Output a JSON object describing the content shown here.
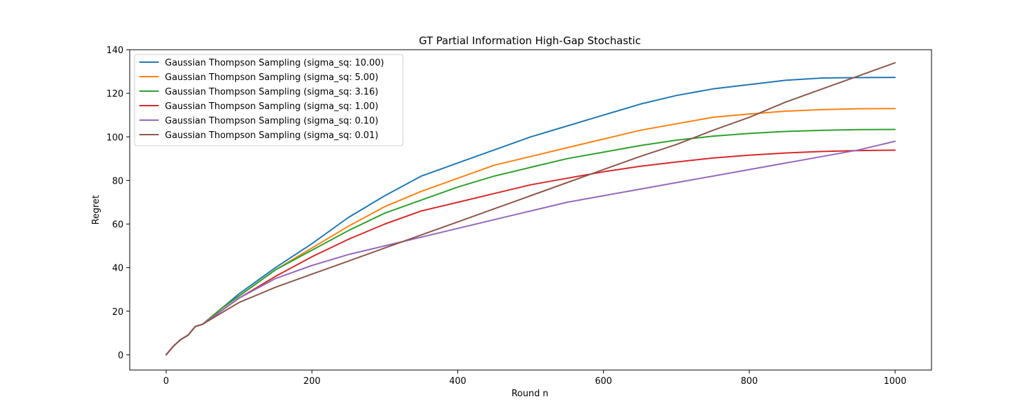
{
  "chart_data": {
    "type": "line",
    "title": "GT Partial Information High-Gap Stochastic",
    "xlabel": "Round n",
    "ylabel": "Regret",
    "xlim": [
      -50,
      1050
    ],
    "ylim": [
      -7,
      140
    ],
    "xticks": [
      0,
      200,
      400,
      600,
      800,
      1000
    ],
    "yticks": [
      0,
      20,
      40,
      60,
      80,
      100,
      120,
      140
    ],
    "grid": false,
    "legend_position": "top-left",
    "x": [
      0,
      10,
      20,
      30,
      40,
      50,
      75,
      100,
      150,
      200,
      250,
      300,
      350,
      400,
      450,
      500,
      550,
      600,
      650,
      700,
      750,
      800,
      850,
      900,
      950,
      1000
    ],
    "series": [
      {
        "name": "Gaussian Thompson Sampling (sigma_sq: 10.00)",
        "color": "#1f77b4",
        "values": [
          0,
          4,
          7,
          9,
          13,
          14,
          21,
          28,
          40,
          51,
          63,
          73,
          82,
          88,
          94,
          100,
          105,
          110,
          115,
          119,
          122,
          124,
          126,
          127,
          127.2,
          127.3
        ]
      },
      {
        "name": "Gaussian Thompson Sampling (sigma_sq: 5.00)",
        "color": "#ff7f0e",
        "values": [
          0,
          4,
          7,
          9,
          13,
          14,
          21,
          27,
          39,
          49,
          59,
          68,
          75,
          81,
          87,
          91,
          95,
          99,
          103,
          106,
          109,
          110.5,
          111.8,
          112.5,
          112.9,
          113
        ]
      },
      {
        "name": "Gaussian Thompson Sampling (sigma_sq: 3.16)",
        "color": "#2ca02c",
        "values": [
          0,
          4,
          7,
          9,
          13,
          14,
          21,
          27,
          39,
          48,
          57,
          65,
          71,
          77,
          82,
          86,
          90,
          93,
          96,
          98.5,
          100.3,
          101.6,
          102.5,
          103,
          103.3,
          103.4
        ]
      },
      {
        "name": "Gaussian Thompson Sampling (sigma_sq: 1.00)",
        "color": "#d62728",
        "values": [
          0,
          4,
          7,
          9,
          13,
          14,
          20,
          26,
          36,
          45,
          53,
          60,
          66,
          70,
          74,
          78,
          81,
          84,
          86.5,
          88.5,
          90.3,
          91.6,
          92.6,
          93.3,
          93.7,
          93.9
        ]
      },
      {
        "name": "Gaussian Thompson Sampling (sigma_sq: 0.10)",
        "color": "#9467bd",
        "values": [
          0,
          4,
          7,
          9,
          13,
          14,
          20,
          26,
          35,
          41,
          46,
          50,
          54,
          58,
          62,
          66,
          70,
          73,
          76,
          79,
          82,
          85,
          88,
          91,
          94,
          98
        ]
      },
      {
        "name": "Gaussian Thompson Sampling (sigma_sq: 0.01)",
        "color": "#8c564b",
        "values": [
          0,
          4,
          7,
          9,
          13,
          14,
          19,
          24,
          31,
          37,
          43,
          49,
          55,
          61,
          67,
          73,
          79,
          85,
          91,
          96.5,
          103,
          109,
          116,
          122,
          128,
          134
        ]
      }
    ]
  }
}
